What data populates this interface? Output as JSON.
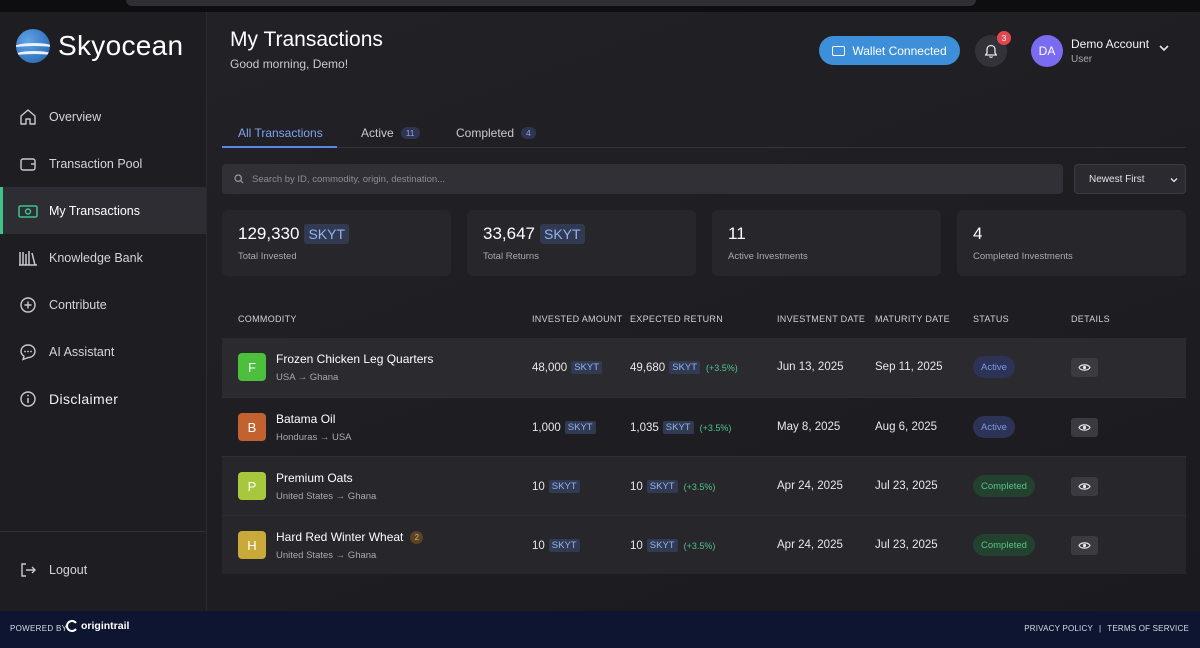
{
  "brand": {
    "name": "Skyocean"
  },
  "sidebar": {
    "items": [
      {
        "label": "Overview",
        "icon": "home-icon"
      },
      {
        "label": "Transaction Pool",
        "icon": "wallet-icon"
      },
      {
        "label": "My Transactions",
        "icon": "money-icon",
        "active": true
      },
      {
        "label": "Knowledge Bank",
        "icon": "books-icon"
      },
      {
        "label": "Contribute",
        "icon": "plus-circle-icon"
      },
      {
        "label": "AI Assistant",
        "icon": "chat-icon"
      },
      {
        "label": "Disclaimer",
        "icon": "info-icon"
      }
    ],
    "logout": "Logout"
  },
  "header": {
    "title": "My Transactions",
    "subtitle": "Good morning, Demo!",
    "wallet_label": "Wallet Connected",
    "notif_count": "3",
    "avatar_initials": "DA",
    "account_name": "Demo Account",
    "account_role": "User"
  },
  "tabs": [
    {
      "label": "All Transactions",
      "count": ""
    },
    {
      "label": "Active",
      "count": "11"
    },
    {
      "label": "Completed",
      "count": "4"
    }
  ],
  "search": {
    "placeholder": "Search by ID, commodity, origin, destination..."
  },
  "sort": {
    "selected": "Newest First"
  },
  "stats": [
    {
      "value": "129,330",
      "unit": "SKYT",
      "label": "Total Invested"
    },
    {
      "value": "33,647",
      "unit": "SKYT",
      "label": "Total Returns"
    },
    {
      "value": "11",
      "unit": "",
      "label": "Active Investments"
    },
    {
      "value": "4",
      "unit": "",
      "label": "Completed Investments"
    }
  ],
  "table": {
    "headers": [
      "COMMODITY",
      "INVESTED AMOUNT",
      "EXPECTED RETURN",
      "INVESTMENT DATE",
      "MATURITY DATE",
      "STATUS",
      "DETAILS"
    ],
    "rows": [
      {
        "initial": "F",
        "chip_color": "#4cbf3d",
        "name": "Frozen Chicken Leg Quarters",
        "badge": "",
        "route": "USA → Ghana",
        "invested": "48,000",
        "expected": "49,680",
        "pct": "(+3.5%)",
        "inv_date": "Jun 13, 2025",
        "mat_date": "Sep 11, 2025",
        "status": "Active"
      },
      {
        "initial": "B",
        "chip_color": "#c2622f",
        "name": "Batama Oil",
        "badge": "",
        "route": "Honduras → USA",
        "invested": "1,000",
        "expected": "1,035",
        "pct": "(+3.5%)",
        "inv_date": "May 8, 2025",
        "mat_date": "Aug 6, 2025",
        "status": "Active"
      },
      {
        "initial": "P",
        "chip_color": "#a7c83c",
        "name": "Premium Oats",
        "badge": "",
        "route": "United States → Ghana",
        "invested": "10",
        "expected": "10",
        "pct": "(+3.5%)",
        "inv_date": "Apr 24, 2025",
        "mat_date": "Jul 23, 2025",
        "status": "Completed"
      },
      {
        "initial": "H",
        "chip_color": "#c9a93a",
        "name": "Hard Red Winter Wheat",
        "badge": "2",
        "route": "United States → Ghana",
        "invested": "10",
        "expected": "10",
        "pct": "(+3.5%)",
        "inv_date": "Apr 24, 2025",
        "mat_date": "Jul 23, 2025",
        "status": "Completed"
      }
    ],
    "unit": "SKYT"
  },
  "footer": {
    "powered_by": "POWERED BY",
    "partner": "origintrail",
    "privacy": "PRIVACY POLICY",
    "separator": "|",
    "terms": "TERMS OF SERVICE"
  },
  "colors": {
    "accent": "#3ec38a",
    "wallet": "#3d8fd9",
    "footer": "#0d1530"
  }
}
